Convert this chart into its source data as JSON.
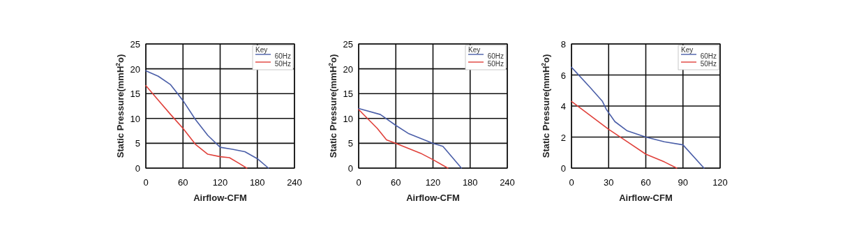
{
  "chart_data": [
    {
      "type": "line",
      "xlabel": "Airflow-CFM",
      "ylabel": "Static Pressure(mmH$^{2}$o)",
      "legend_title": "Key",
      "legend": "top right",
      "grid": true,
      "line_style": "solid",
      "xlim": [
        0,
        240
      ],
      "xticks": [
        0,
        60,
        120,
        180,
        240
      ],
      "ylim": [
        0,
        25
      ],
      "yticks": [
        0,
        5,
        10,
        15,
        20,
        25
      ],
      "series": [
        {
          "name": "60Hz",
          "color": "#4a5ea8",
          "x": [
            0,
            20,
            40,
            60,
            80,
            100,
            120,
            140,
            160,
            180,
            198
          ],
          "values": [
            19.6,
            18.5,
            16.8,
            13.6,
            9.8,
            6.6,
            4.2,
            3.8,
            3.3,
            1.9,
            0
          ]
        },
        {
          "name": "50Hz",
          "color": "#e0403a",
          "x": [
            0,
            20,
            40,
            60,
            80,
            100,
            120,
            135,
            150,
            163
          ],
          "values": [
            16.6,
            13.7,
            10.8,
            8,
            4.8,
            2.8,
            2.3,
            2.1,
            1,
            0
          ]
        }
      ]
    },
    {
      "type": "line",
      "xlabel": "Airflow-CFM",
      "ylabel": "Static Pressure(mmH$^{2}$o)",
      "legend_title": "Key",
      "legend": "top right",
      "grid": true,
      "line_style": "solid",
      "xlim": [
        0,
        240
      ],
      "xticks": [
        0,
        60,
        120,
        180,
        240
      ],
      "ylim": [
        0,
        25
      ],
      "yticks": [
        0,
        5,
        10,
        15,
        20,
        25
      ],
      "series": [
        {
          "name": "60Hz",
          "color": "#4a5ea8",
          "x": [
            0,
            35,
            60,
            80,
            120,
            136,
            166
          ],
          "values": [
            12,
            10.8,
            8.6,
            7,
            5,
            4.4,
            0
          ]
        },
        {
          "name": "50Hz",
          "color": "#e0403a",
          "x": [
            0,
            30,
            45,
            60,
            100,
            120,
            144
          ],
          "values": [
            11.8,
            8,
            5.7,
            5,
            3,
            1.7,
            0
          ]
        }
      ]
    },
    {
      "type": "line",
      "xlabel": "Airflow-CFM",
      "ylabel": "Static Pressure(mmH$^{2}$o)",
      "legend_title": "Key",
      "legend": "top right",
      "grid": true,
      "line_style": "solid",
      "xlim": [
        0,
        120
      ],
      "xticks": [
        0,
        30,
        60,
        90,
        120
      ],
      "ylim": [
        0,
        8
      ],
      "yticks": [
        0,
        2,
        4,
        6,
        8
      ],
      "series": [
        {
          "name": "60Hz",
          "color": "#4a5ea8",
          "x": [
            0,
            15,
            25,
            28,
            35,
            45,
            60,
            75,
            90,
            107
          ],
          "values": [
            6.5,
            5.2,
            4.3,
            3.8,
            3,
            2.4,
            2,
            1.7,
            1.5,
            0
          ]
        },
        {
          "name": "50Hz",
          "color": "#e0403a",
          "x": [
            0,
            15,
            30,
            45,
            60,
            75,
            85
          ],
          "values": [
            4.3,
            3.4,
            2.5,
            1.7,
            0.9,
            0.4,
            0
          ]
        }
      ]
    }
  ]
}
